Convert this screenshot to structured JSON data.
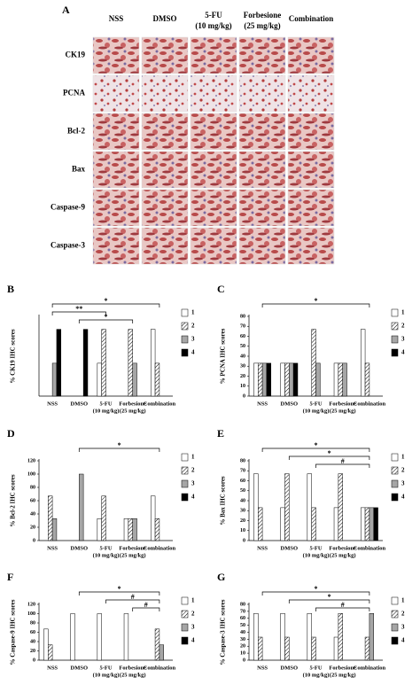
{
  "panel_a": {
    "label": "A",
    "columns": [
      {
        "name": "NSS"
      },
      {
        "name": "DMSO"
      },
      {
        "name": "5-FU",
        "note": "(10 mg/kg)"
      },
      {
        "name": "Forbesione",
        "note": "(25 mg/kg)"
      },
      {
        "name": "Combination"
      }
    ],
    "rows": [
      "CK19",
      "PCNA",
      "Bcl-2",
      "Bax",
      "Caspase-9",
      "Caspase-3"
    ]
  },
  "chart_data": [
    {
      "type": "bar",
      "label": "B",
      "y_label": "% CK19 IHC scores",
      "categories": [
        "NSS",
        "DMSO",
        "5-FU",
        "Forbesione",
        "Combination"
      ],
      "category_notes": [
        null,
        null,
        "(10 mg/kg)",
        "(25 mg/kg)",
        null
      ],
      "ylim": [
        0,
        80
      ],
      "series": [
        {
          "name": "1",
          "color": "#ffffff",
          "values": [
            0,
            0,
            33,
            0,
            67
          ]
        },
        {
          "name": "2",
          "color": "#ffffff",
          "hatch": true,
          "values": [
            0,
            0,
            67,
            67,
            33
          ]
        },
        {
          "name": "3",
          "color": "#a6a6a6",
          "values": [
            33,
            0,
            0,
            33,
            0
          ]
        },
        {
          "name": "4",
          "color": "#000000",
          "values": [
            67,
            67,
            0,
            0,
            0
          ]
        }
      ],
      "brackets": [
        {
          "from": 0,
          "to": 4,
          "label": "*"
        },
        {
          "from": 0,
          "to": 2,
          "label": "**"
        },
        {
          "from": 1,
          "to": 3,
          "label": "*"
        }
      ]
    },
    {
      "type": "bar",
      "label": "C",
      "y_label": "% PCNA IHC scores",
      "categories": [
        "NSS",
        "DMSO",
        "5-FU",
        "Forbesione",
        "Combination"
      ],
      "category_notes": [
        null,
        null,
        "(10 mg/kg)",
        "(25 mg/kg)",
        null
      ],
      "ylim": [
        0,
        80
      ],
      "yticks": [
        0,
        10,
        20,
        30,
        40,
        50,
        60,
        70,
        80
      ],
      "series": [
        {
          "name": "1",
          "color": "#ffffff",
          "values": [
            33,
            33,
            0,
            33,
            67
          ]
        },
        {
          "name": "2",
          "color": "#ffffff",
          "hatch": true,
          "values": [
            33,
            33,
            67,
            33,
            33
          ]
        },
        {
          "name": "3",
          "color": "#a6a6a6",
          "values": [
            33,
            33,
            33,
            33,
            0
          ]
        },
        {
          "name": "4",
          "color": "#000000",
          "values": [
            33,
            33,
            0,
            0,
            0
          ]
        }
      ],
      "brackets": [
        {
          "from": 0,
          "to": 4,
          "label": "*"
        }
      ]
    },
    {
      "type": "bar",
      "label": "D",
      "y_label": "% Bcl-2 IHC scores",
      "categories": [
        "NSS",
        "DMSO",
        "5-FU",
        "Forbesione",
        "Combination"
      ],
      "category_notes": [
        null,
        null,
        "(10 mg/kg)",
        "(25 mg/kg)",
        null
      ],
      "ylim": [
        0,
        120
      ],
      "yticks": [
        0,
        20,
        40,
        60,
        80,
        100,
        120
      ],
      "series": [
        {
          "name": "1",
          "color": "#ffffff",
          "values": [
            0,
            0,
            33,
            33,
            67
          ]
        },
        {
          "name": "2",
          "color": "#ffffff",
          "hatch": true,
          "values": [
            67,
            0,
            67,
            33,
            33
          ]
        },
        {
          "name": "3",
          "color": "#a6a6a6",
          "values": [
            33,
            100,
            0,
            33,
            0
          ]
        },
        {
          "name": "4",
          "color": "#000000",
          "values": [
            0,
            0,
            0,
            0,
            0
          ]
        }
      ],
      "brackets": [
        {
          "from": 1,
          "to": 4,
          "label": "*"
        }
      ]
    },
    {
      "type": "bar",
      "label": "E",
      "y_label": "% Bax IHC scores",
      "categories": [
        "NSS",
        "DMSO",
        "5-FU",
        "Forbesione",
        "Combination"
      ],
      "category_notes": [
        null,
        null,
        "(10 mg/kg)",
        "(25 mg/kg)",
        null
      ],
      "ylim": [
        0,
        80
      ],
      "yticks": [
        0,
        10,
        20,
        30,
        40,
        50,
        60,
        70,
        80
      ],
      "series": [
        {
          "name": "1",
          "color": "#ffffff",
          "values": [
            67,
            33,
            67,
            33,
            33
          ]
        },
        {
          "name": "2",
          "color": "#ffffff",
          "hatch": true,
          "values": [
            33,
            67,
            33,
            67,
            33
          ]
        },
        {
          "name": "3",
          "color": "#a6a6a6",
          "values": [
            0,
            0,
            0,
            0,
            33
          ]
        },
        {
          "name": "4",
          "color": "#000000",
          "values": [
            0,
            0,
            0,
            0,
            33
          ]
        }
      ],
      "brackets": [
        {
          "from": 0,
          "to": 4,
          "label": "*"
        },
        {
          "from": 1,
          "to": 4,
          "label": "*"
        },
        {
          "from": 2,
          "to": 4,
          "label": "#"
        }
      ]
    },
    {
      "type": "bar",
      "label": "F",
      "y_label": "% Caspase-9 IHC scores",
      "categories": [
        "NSS",
        "DMSO",
        "5-FU",
        "Forbesione",
        "Combination"
      ],
      "category_notes": [
        null,
        null,
        "(10 mg/kg)",
        "(25 mg/kg)",
        null
      ],
      "ylim": [
        0,
        120
      ],
      "yticks": [
        0,
        20,
        40,
        60,
        80,
        100,
        120
      ],
      "series": [
        {
          "name": "1",
          "color": "#ffffff",
          "values": [
            67,
            100,
            100,
            100,
            0
          ]
        },
        {
          "name": "2",
          "color": "#ffffff",
          "hatch": true,
          "values": [
            33,
            0,
            0,
            0,
            67
          ]
        },
        {
          "name": "3",
          "color": "#a6a6a6",
          "values": [
            0,
            0,
            0,
            0,
            33
          ]
        },
        {
          "name": "4",
          "color": "#000000",
          "values": [
            0,
            0,
            0,
            0,
            0
          ]
        }
      ],
      "brackets": [
        {
          "from": 1,
          "to": 4,
          "label": "*"
        },
        {
          "from": 2,
          "to": 4,
          "label": "#"
        },
        {
          "from": 3,
          "to": 4,
          "label": "#"
        }
      ]
    },
    {
      "type": "bar",
      "label": "G",
      "y_label": "% Caspase-3 IHC scores",
      "categories": [
        "NSS",
        "DMSO",
        "5-FU",
        "Forbesione",
        "Combination"
      ],
      "category_notes": [
        null,
        null,
        "(10 mg/kg)",
        "(25 mg/kg)",
        null
      ],
      "ylim": [
        0,
        80
      ],
      "yticks": [
        0,
        10,
        20,
        30,
        40,
        50,
        60,
        70,
        80
      ],
      "series": [
        {
          "name": "1",
          "color": "#ffffff",
          "values": [
            67,
            67,
            67,
            33,
            0
          ]
        },
        {
          "name": "2",
          "color": "#ffffff",
          "hatch": true,
          "values": [
            33,
            33,
            33,
            67,
            33
          ]
        },
        {
          "name": "3",
          "color": "#a6a6a6",
          "values": [
            0,
            0,
            0,
            0,
            67
          ]
        },
        {
          "name": "4",
          "color": "#000000",
          "values": [
            0,
            0,
            0,
            0,
            0
          ]
        }
      ],
      "brackets": [
        {
          "from": 0,
          "to": 4,
          "label": "*"
        },
        {
          "from": 1,
          "to": 4,
          "label": "*"
        },
        {
          "from": 2,
          "to": 4,
          "label": "#"
        }
      ]
    }
  ]
}
